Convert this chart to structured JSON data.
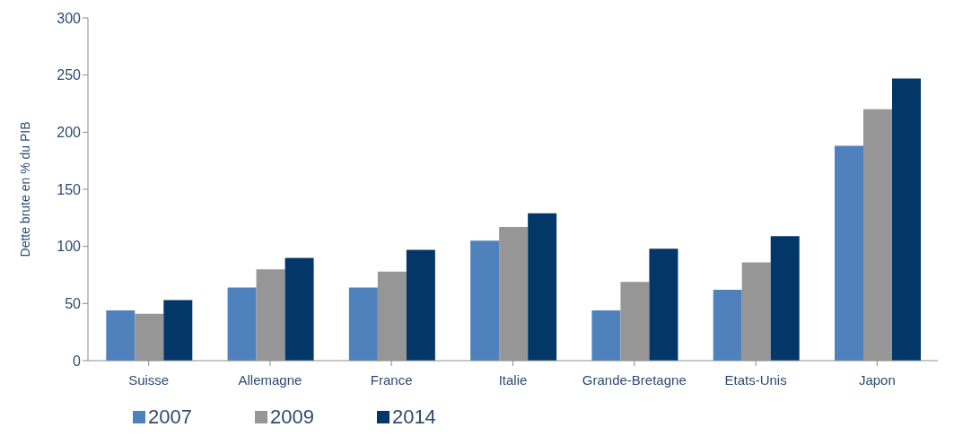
{
  "chart_data": {
    "type": "bar",
    "ylabel": "Dette brute en % du PIB",
    "categories": [
      "Suisse",
      "Allemagne",
      "France",
      "Italie",
      "Grande-Bretagne",
      "Etats-Unis",
      "Japon"
    ],
    "series": [
      {
        "name": "2007",
        "color": "#4f81bd",
        "values": [
          44,
          64,
          64,
          105,
          44,
          62,
          188
        ]
      },
      {
        "name": "2009",
        "color": "#969696",
        "values": [
          41,
          80,
          78,
          117,
          69,
          86,
          220
        ]
      },
      {
        "name": "2014",
        "color": "#033767",
        "values": [
          53,
          90,
          97,
          129,
          98,
          109,
          247
        ]
      }
    ],
    "ylim": [
      0,
      300
    ],
    "yticks": [
      0,
      50,
      100,
      150,
      200,
      250,
      300
    ],
    "grid": false,
    "legend": "bottom"
  }
}
